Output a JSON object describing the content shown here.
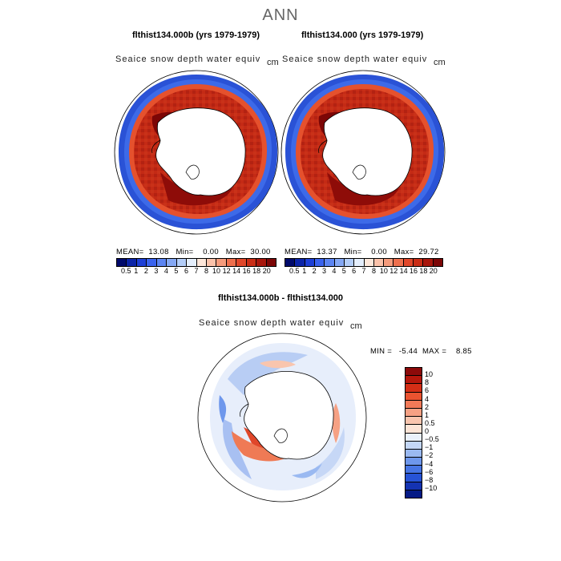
{
  "page_title": "ANN",
  "panels": [
    {
      "title": "flthist134.000b (yrs 1979-1979)",
      "variable": "Seaice snow depth water equiv",
      "units": "cm",
      "stats": "MEAN=  13.08   Min=    0.00   Max=  30.00"
    },
    {
      "title": "flthist134.000 (yrs 1979-1979)",
      "variable": "Seaice snow depth water equiv",
      "units": "cm",
      "stats": "MEAN=  13.37   Min=    0.00   Max=  29.72"
    }
  ],
  "top_colorbar": {
    "labels": [
      "0.5",
      "1",
      "2",
      "3",
      "4",
      "5",
      "6",
      "7",
      "8",
      "10",
      "12",
      "14",
      "16",
      "18",
      "20"
    ],
    "colors": [
      "#000a6b",
      "#0b24a8",
      "#1d3fd6",
      "#3a63ee",
      "#5c85f2",
      "#85a8f4",
      "#b3cdf8",
      "#e4eefc",
      "#fde7da",
      "#fbc2aa",
      "#f59b7c",
      "#ee6f4d",
      "#e0472a",
      "#c92d16",
      "#a8160c",
      "#7c0606"
    ]
  },
  "diff_panel": {
    "title": "flthist134.000b - flthist134.000",
    "variable": "Seaice snow depth water equiv",
    "units": "cm",
    "stats": "MIN =   -5.44  MAX =    8.85"
  },
  "diff_colorbar": {
    "labels": [
      "10",
      "8",
      "6",
      "4",
      "2",
      "1",
      "0.5",
      "0",
      "-0.5",
      "-1",
      "-2",
      "-4",
      "-6",
      "-8",
      "-10"
    ],
    "colors": [
      "#8c0a0a",
      "#b5170c",
      "#d42e16",
      "#ea5330",
      "#f27a58",
      "#f6a184",
      "#f9c5ae",
      "#fce4d6",
      "#eaf1fb",
      "#c3d6f6",
      "#9ab9f1",
      "#6e97ec",
      "#4775e4",
      "#2753d6",
      "#1433b2",
      "#061b86"
    ]
  }
}
